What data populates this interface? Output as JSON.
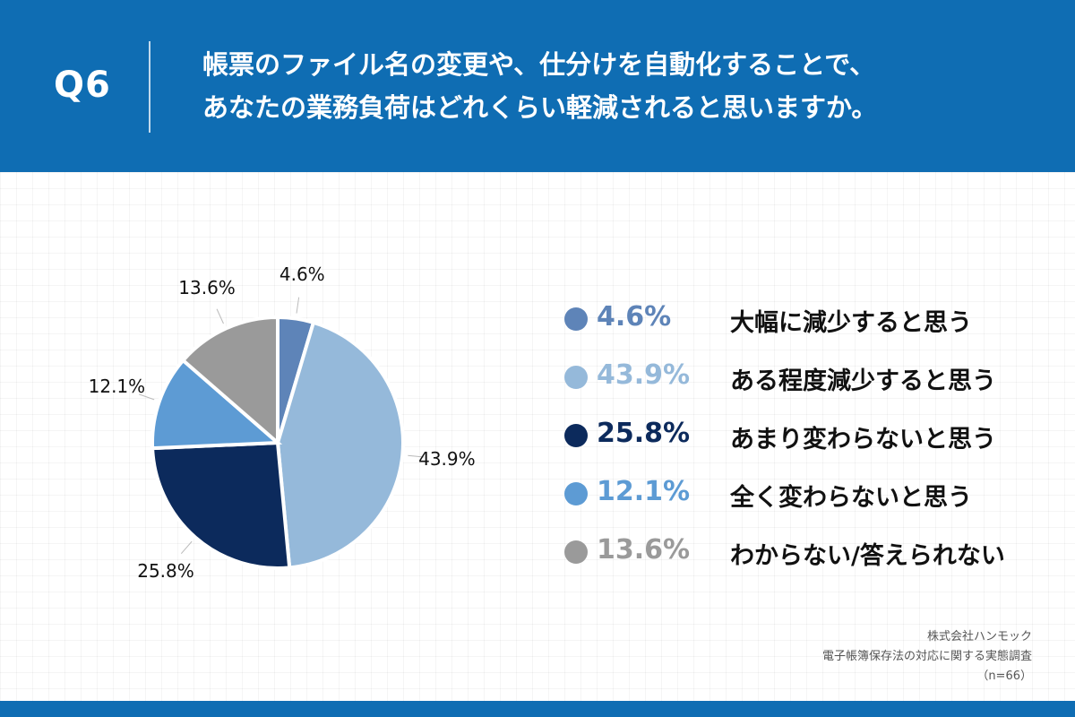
{
  "header": {
    "question_id": "Q6",
    "title_line1": "帳票のファイル名の変更や、仕分けを自動化することで、",
    "title_line2": "あなたの業務負荷はどれくらい軽減されると思いますか。"
  },
  "chart_data": {
    "type": "pie",
    "title": "帳票のファイル名の変更や、仕分けを自動化することで、あなたの業務負荷はどれくらい軽減されると思いますか。",
    "slices": [
      {
        "label": "大幅に減少すると思う",
        "value": 4.6,
        "value_label": "4.6%",
        "color": "#5e84b8"
      },
      {
        "label": "ある程度減少すると思う",
        "value": 43.9,
        "value_label": "43.9%",
        "color": "#95b9da"
      },
      {
        "label": "あまり変わらないと思う",
        "value": 25.8,
        "value_label": "25.8%",
        "color": "#0c2a5c"
      },
      {
        "label": "全く変わらないと思う",
        "value": 12.1,
        "value_label": "12.1%",
        "color": "#5d9bd4"
      },
      {
        "label": "わからない/答えられない",
        "value": 13.6,
        "value_label": "13.6%",
        "color": "#9a9a9a"
      }
    ]
  },
  "source": {
    "company": "株式会社ハンモック",
    "survey": "電子帳簿保存法の対応に関する実態調査",
    "n": "（n=66）"
  }
}
